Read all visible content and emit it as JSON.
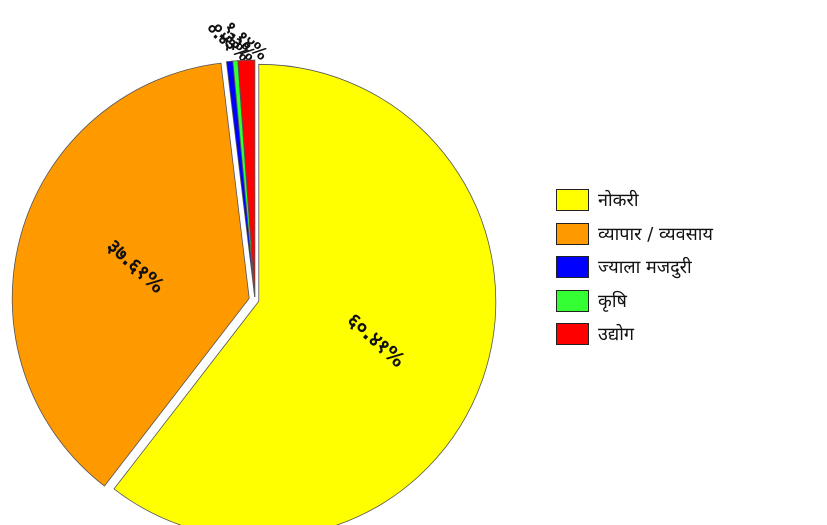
{
  "chart_data": {
    "type": "pie",
    "title": "",
    "slices": [
      {
        "name": "नोकरी",
        "value": 60.41,
        "label": "६०.४१%",
        "color": "#ffff00"
      },
      {
        "name": "व्यापार / व्यवसाय",
        "value": 37.61,
        "label": "३७.६१%",
        "color": "#ff9900"
      },
      {
        "name": "ज्याला मजदुरी",
        "value": 0.43,
        "label": "०.४३%",
        "color": "#0000ff"
      },
      {
        "name": "कृषि",
        "value": 0.33,
        "label": "०.३३%",
        "color": "#33ff33"
      },
      {
        "name": "उद्योग",
        "value": 1.14,
        "label": "१.१४%",
        "color": "#ff0000"
      }
    ],
    "start": "12 o'clock",
    "direction": "clockwise",
    "exploded": true,
    "legend": "right"
  }
}
